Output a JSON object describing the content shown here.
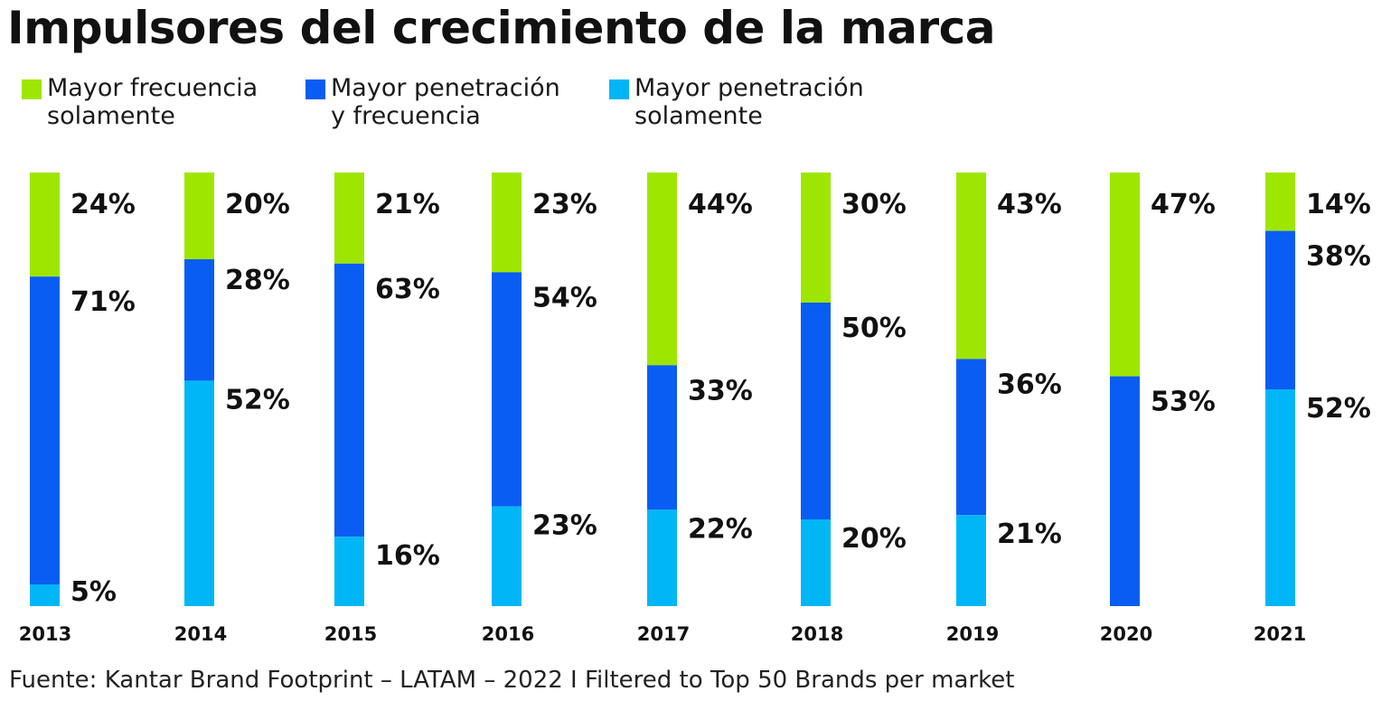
{
  "title": "Impulsores del crecimiento de la marca",
  "source": "Fuente: Kantar Brand Footprint – LATAM – 2022 I Filtered to Top 50 Brands per market",
  "colors": {
    "frequency_only": "#9ee600",
    "penetration_and_frequency": "#0a5df2",
    "penetration_only": "#00b6f7"
  },
  "chart_data": {
    "type": "bar",
    "stacked": true,
    "percent": true,
    "categories": [
      "2013",
      "2014",
      "2015",
      "2016",
      "2017",
      "2018",
      "2019",
      "2020",
      "2021"
    ],
    "series": [
      {
        "name": "Mayor frecuencia\nsolamente",
        "color": "#9ee600",
        "values": [
          24,
          20,
          21,
          23,
          44,
          30,
          43,
          47,
          14
        ],
        "labels": [
          "24%",
          "20%",
          "21%",
          "23%",
          "44%",
          "30%",
          "43%",
          "47%",
          "14%"
        ]
      },
      {
        "name": "Mayor penetración\ny frecuencia",
        "color": "#0a5df2",
        "values": [
          71,
          28,
          63,
          54,
          33,
          50,
          36,
          53,
          38
        ],
        "labels": [
          "71%",
          "28%",
          "63%",
          "54%",
          "33%",
          "50%",
          "36%",
          "53%",
          "38%"
        ]
      },
      {
        "name": "Mayor penetración\nsolamente",
        "color": "#00b6f7",
        "values": [
          5,
          52,
          16,
          23,
          22,
          20,
          21,
          0,
          52
        ],
        "labels": [
          "5%",
          "52%",
          "16%",
          "23%",
          "22%",
          "20%",
          "21%",
          "",
          "52%"
        ]
      }
    ],
    "legend_position": "top-left",
    "grid": false
  }
}
